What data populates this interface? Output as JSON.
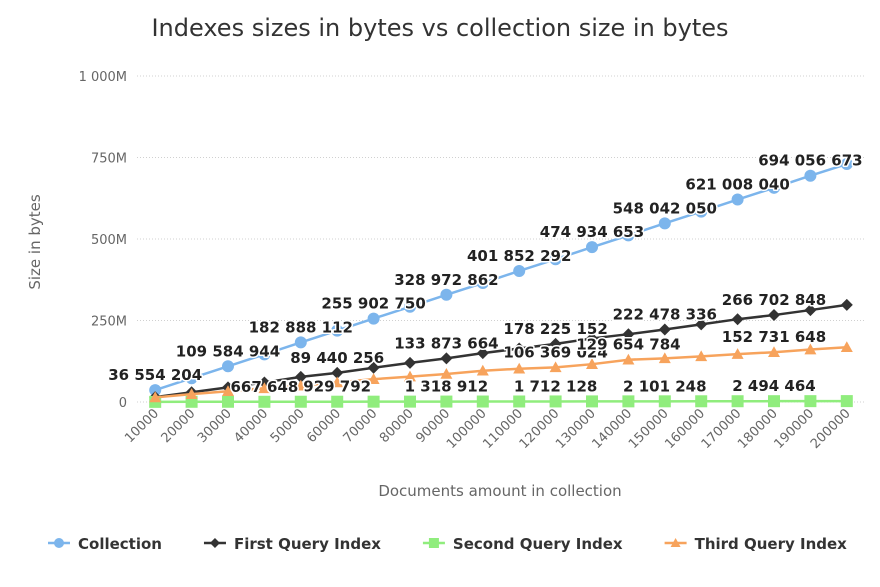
{
  "chart_data": {
    "type": "line",
    "title": "Indexes sizes in bytes vs collection size in bytes",
    "xlabel": "Documents amount in collection",
    "ylabel": "Size in bytes",
    "ylim": [
      0,
      1000000000
    ],
    "yticks": [
      {
        "value": 0,
        "label": "0"
      },
      {
        "value": 250000000,
        "label": "250M"
      },
      {
        "value": 500000000,
        "label": "500M"
      },
      {
        "value": 750000000,
        "label": "750M"
      },
      {
        "value": 1000000000,
        "label": "1 000M"
      }
    ],
    "x": [
      "10000",
      "20000",
      "30000",
      "40000",
      "50000",
      "60000",
      "70000",
      "80000",
      "90000",
      "100000",
      "110000",
      "120000",
      "130000",
      "140000",
      "150000",
      "160000",
      "170000",
      "180000",
      "190000",
      "200000"
    ],
    "grid": true,
    "legend_position": "bottom",
    "series": [
      {
        "name": "Collection",
        "color": "#7cb5ec",
        "marker": "circle",
        "values": [
          36554204,
          73000000,
          109584944,
          146000000,
          182888112,
          219000000,
          255902750,
          292000000,
          328972862,
          365000000,
          401852292,
          438000000,
          474934653,
          511000000,
          548042050,
          584000000,
          621008040,
          657000000,
          694056673,
          730000000
        ],
        "labels": [
          {
            "index": 0,
            "text": "36 554 204"
          },
          {
            "index": 2,
            "text": "109 584 944"
          },
          {
            "index": 4,
            "text": "182 888 112"
          },
          {
            "index": 6,
            "text": "255 902 750"
          },
          {
            "index": 8,
            "text": "328 972 862"
          },
          {
            "index": 10,
            "text": "401 852 292"
          },
          {
            "index": 12,
            "text": "474 934 653"
          },
          {
            "index": 14,
            "text": "548 042 050"
          },
          {
            "index": 16,
            "text": "621 008 040"
          },
          {
            "index": 18,
            "text": "694 056 673"
          }
        ]
      },
      {
        "name": "First Query Index",
        "color": "#333333",
        "marker": "diamond",
        "values": [
          15000000,
          30000000,
          45000000,
          60000000,
          77000000,
          89440256,
          105000000,
          120000000,
          133873664,
          150000000,
          164000000,
          178225152,
          195000000,
          208000000,
          222478336,
          238000000,
          254000000,
          266702848,
          282000000,
          298000000
        ],
        "labels": [
          {
            "index": 5,
            "text": "89 440 256"
          },
          {
            "index": 8,
            "text": "133 873 664"
          },
          {
            "index": 11,
            "text": "178 225 152"
          },
          {
            "index": 14,
            "text": "222 478 336"
          },
          {
            "index": 17,
            "text": "266 702 848"
          }
        ]
      },
      {
        "name": "Second Query Index",
        "color": "#90ed7d",
        "marker": "square",
        "values": [
          400000,
          670000,
          750000,
          667648,
          800000,
          929792,
          1000000,
          1150000,
          1318912,
          1450000,
          1580000,
          1712128,
          1840000,
          1970000,
          2101248,
          2230000,
          2360000,
          2494464,
          2620000,
          2750000
        ],
        "labels": [
          {
            "index": 3,
            "text": "667 648"
          },
          {
            "index": 5,
            "text": "929 792"
          },
          {
            "index": 8,
            "text": "1 318 912"
          },
          {
            "index": 11,
            "text": "1 712 128"
          },
          {
            "index": 14,
            "text": "2 101 248"
          },
          {
            "index": 17,
            "text": "2 494 464"
          }
        ]
      },
      {
        "name": "Third Query Index",
        "color": "#f7a35c",
        "marker": "triangle",
        "values": [
          14000000,
          24000000,
          33000000,
          42000000,
          50000000,
          60000000,
          70000000,
          78000000,
          86000000,
          96000000,
          102000000,
          106369024,
          116000000,
          129654784,
          134000000,
          140000000,
          147000000,
          152731648,
          161000000,
          168000000
        ],
        "labels": [
          {
            "index": 11,
            "text": "106 369 024"
          },
          {
            "index": 13,
            "text": "129 654 784"
          },
          {
            "index": 17,
            "text": "152 731 648"
          }
        ]
      }
    ]
  }
}
